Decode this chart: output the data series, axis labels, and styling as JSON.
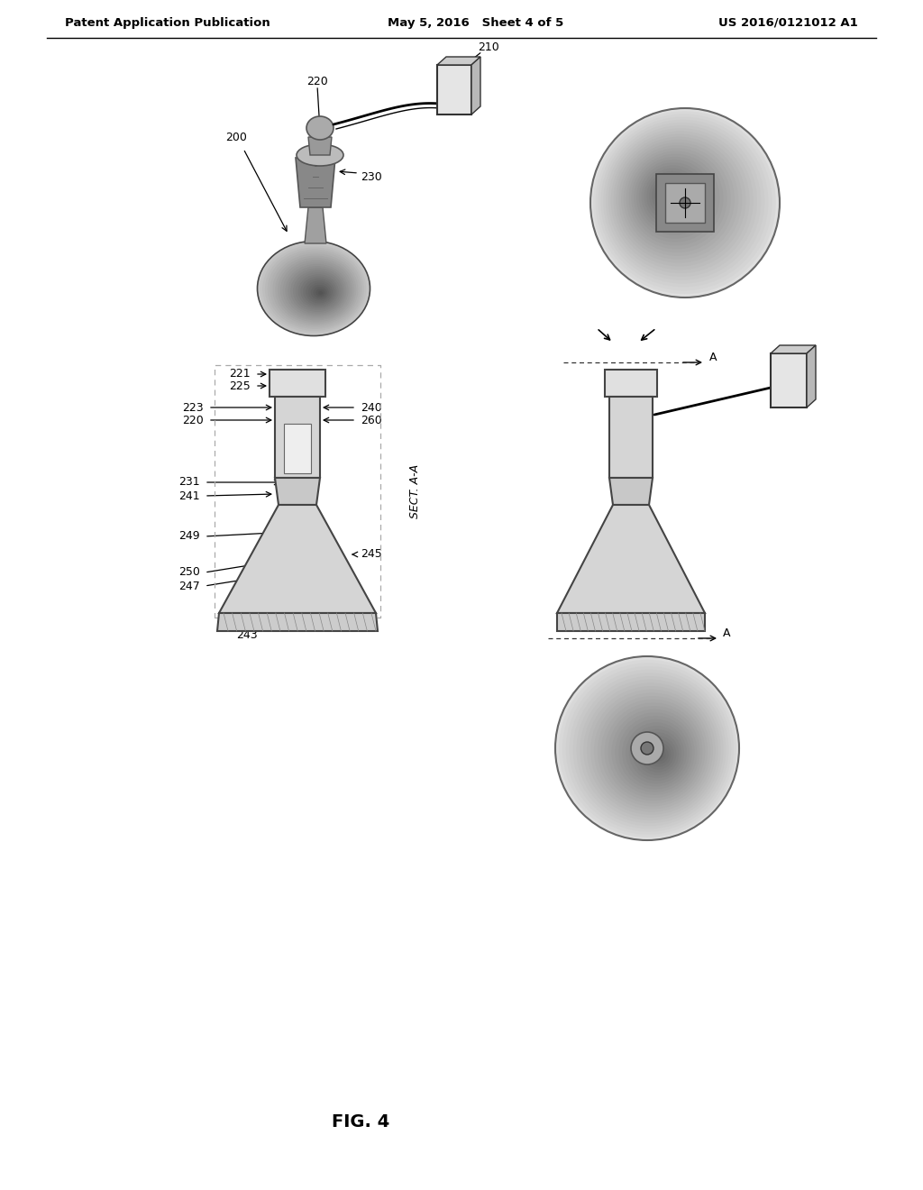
{
  "header_left": "Patent Application Publication",
  "header_mid": "May 5, 2016   Sheet 4 of 5",
  "header_right": "US 2016/0121012 A1",
  "fig_label": "FIG. 4",
  "bg_color": "#ffffff"
}
